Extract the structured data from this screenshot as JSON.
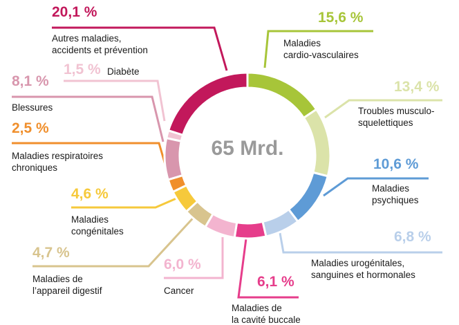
{
  "chart_data": {
    "type": "pie",
    "center_label": "65 Mrd.",
    "categories": [
      "Maladies\ncardio-vasculaires",
      "Troubles musculo-\nsquelettiques",
      "Maladies\npsychiques",
      "Maladies urogénitales,\nsanguines et hormonales",
      "Maladies de\nla cavité buccale",
      "Cancer",
      "Maladies de\nl’appareil digestif",
      "Maladies\ncongénitales",
      "Maladies respiratoires\nchroniques",
      "Blessures",
      "Diabète",
      "Autres maladies,\naccidents et prévention"
    ],
    "values": [
      15.6,
      13.4,
      10.6,
      6.8,
      6.1,
      6.0,
      4.7,
      4.6,
      2.5,
      8.1,
      1.5,
      20.1
    ],
    "value_labels": [
      "15,6 %",
      "13,4 %",
      "10,6 %",
      "6,8 %",
      "6,1 %",
      "6,0 %",
      "4,7 %",
      "4,6 %",
      "2,5 %",
      "8,1 %",
      "1,5 %",
      "20,1 %"
    ],
    "colors": [
      "#a7c539",
      "#dbe3a9",
      "#5e9bd6",
      "#b9cfea",
      "#e63d8b",
      "#f3b4cf",
      "#d8c48e",
      "#f6c93b",
      "#f08f2c",
      "#d896ad",
      "#f1c3d2",
      "#c2185b"
    ]
  }
}
